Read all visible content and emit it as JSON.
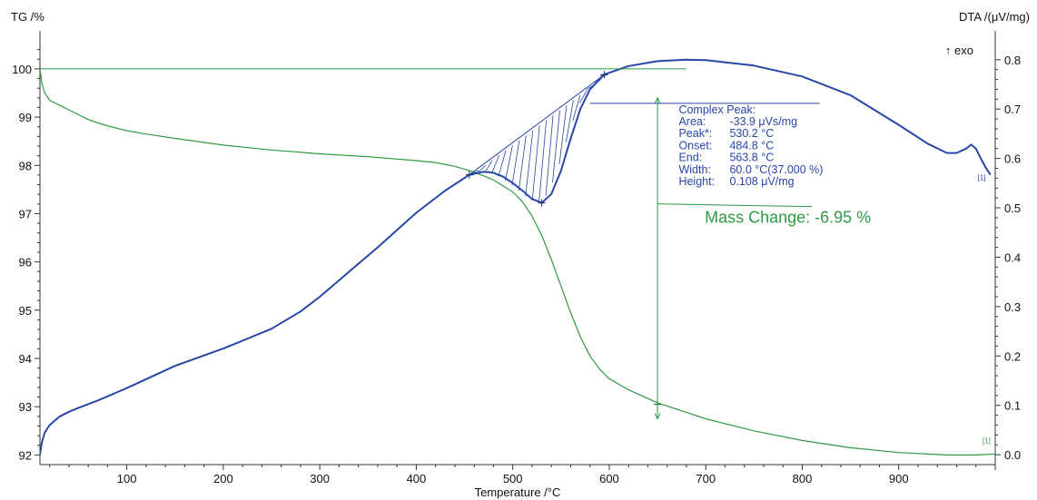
{
  "chart_data": {
    "type": "line",
    "xlabel": "Temperature /°C",
    "ylabel_left": "TG /%",
    "ylabel_right": "DTA /(μV/mg)",
    "exo_label": "↑ exo",
    "xlim": [
      10,
      1000
    ],
    "ylim_left": [
      91.8,
      100.6
    ],
    "ylim_right": [
      -0.02,
      0.84
    ],
    "x_ticks": [
      100,
      200,
      300,
      400,
      500,
      600,
      700,
      800,
      900
    ],
    "y_ticks_left": [
      92,
      93,
      94,
      95,
      96,
      97,
      98,
      99,
      100
    ],
    "y_ticks_right": [
      "0.0",
      "0.1",
      "0.2",
      "0.3",
      "0.4",
      "0.5",
      "0.6",
      "0.7",
      "0.8"
    ],
    "grid": false,
    "series": [
      {
        "axis": "left",
        "color": "#2e9a46",
        "marker": "[1]",
        "x": [
          10,
          12,
          15,
          20,
          30,
          40,
          50,
          60,
          70,
          80,
          100,
          120,
          150,
          200,
          250,
          300,
          350,
          400,
          420,
          440,
          460,
          480,
          500,
          510,
          520,
          530,
          540,
          550,
          560,
          570,
          580,
          590,
          600,
          620,
          650,
          700,
          750,
          800,
          850,
          900,
          950,
          980,
          1000
        ],
        "y": [
          100.0,
          99.7,
          99.5,
          99.35,
          99.25,
          99.15,
          99.05,
          98.95,
          98.88,
          98.82,
          98.72,
          98.65,
          98.56,
          98.42,
          98.32,
          98.24,
          98.18,
          98.1,
          98.06,
          97.98,
          97.86,
          97.7,
          97.45,
          97.25,
          96.95,
          96.55,
          96.05,
          95.5,
          94.95,
          94.45,
          94.05,
          93.78,
          93.58,
          93.35,
          93.08,
          92.75,
          92.5,
          92.3,
          92.15,
          92.05,
          92.0,
          92.0,
          92.02
        ]
      },
      {
        "axis": "right",
        "color": "#2846a8",
        "marker": "[1]",
        "x": [
          10,
          12,
          15,
          20,
          30,
          40,
          50,
          70,
          100,
          150,
          200,
          250,
          280,
          300,
          330,
          360,
          400,
          430,
          455,
          470,
          480,
          490,
          500,
          510,
          520,
          530,
          540,
          550,
          560,
          570,
          580,
          595,
          620,
          650,
          680,
          700,
          750,
          800,
          850,
          900,
          930,
          950,
          960,
          970,
          975,
          980,
          985,
          990,
          995
        ],
        "y": [
          0.0,
          0.025,
          0.045,
          0.06,
          0.077,
          0.087,
          0.095,
          0.11,
          0.135,
          0.18,
          0.215,
          0.255,
          0.29,
          0.32,
          0.37,
          0.42,
          0.49,
          0.535,
          0.567,
          0.573,
          0.571,
          0.563,
          0.55,
          0.535,
          0.518,
          0.51,
          0.528,
          0.575,
          0.64,
          0.7,
          0.74,
          0.77,
          0.787,
          0.797,
          0.8,
          0.799,
          0.788,
          0.766,
          0.728,
          0.668,
          0.63,
          0.611,
          0.611,
          0.62,
          0.628,
          0.62,
          0.6,
          0.582,
          0.567
        ]
      }
    ],
    "points": [
      {
        "axis": "right",
        "x": 455,
        "y": 0.567
      },
      {
        "axis": "right",
        "x": 530,
        "y": 0.51
      },
      {
        "axis": "right",
        "x": 595,
        "y": 0.77
      },
      {
        "axis": "left",
        "x": 650,
        "y": 93.05
      }
    ],
    "peak_baseline": {
      "x": [
        455,
        595
      ],
      "y": [
        0.567,
        0.77
      ]
    },
    "complex_peak": {
      "title": "Complex Peak:",
      "rows": [
        {
          "label": "Area:",
          "value": "-33.9 μVs/mg"
        },
        {
          "label": "Peak*:",
          "value": "530.2 °C"
        },
        {
          "label": "Onset:",
          "value": "484.8 °C"
        },
        {
          "label": "End:",
          "value": "563.8 °C"
        },
        {
          "label": "Width:",
          "value": "60.0 °C(37.000 %)"
        },
        {
          "label": "Height:",
          "value": "0.108 μV/mg"
        }
      ]
    },
    "mass_change": {
      "text": "Mass Change: -6.95 %",
      "x": 650,
      "y_from": 99.4,
      "y_to": 92.75
    }
  }
}
